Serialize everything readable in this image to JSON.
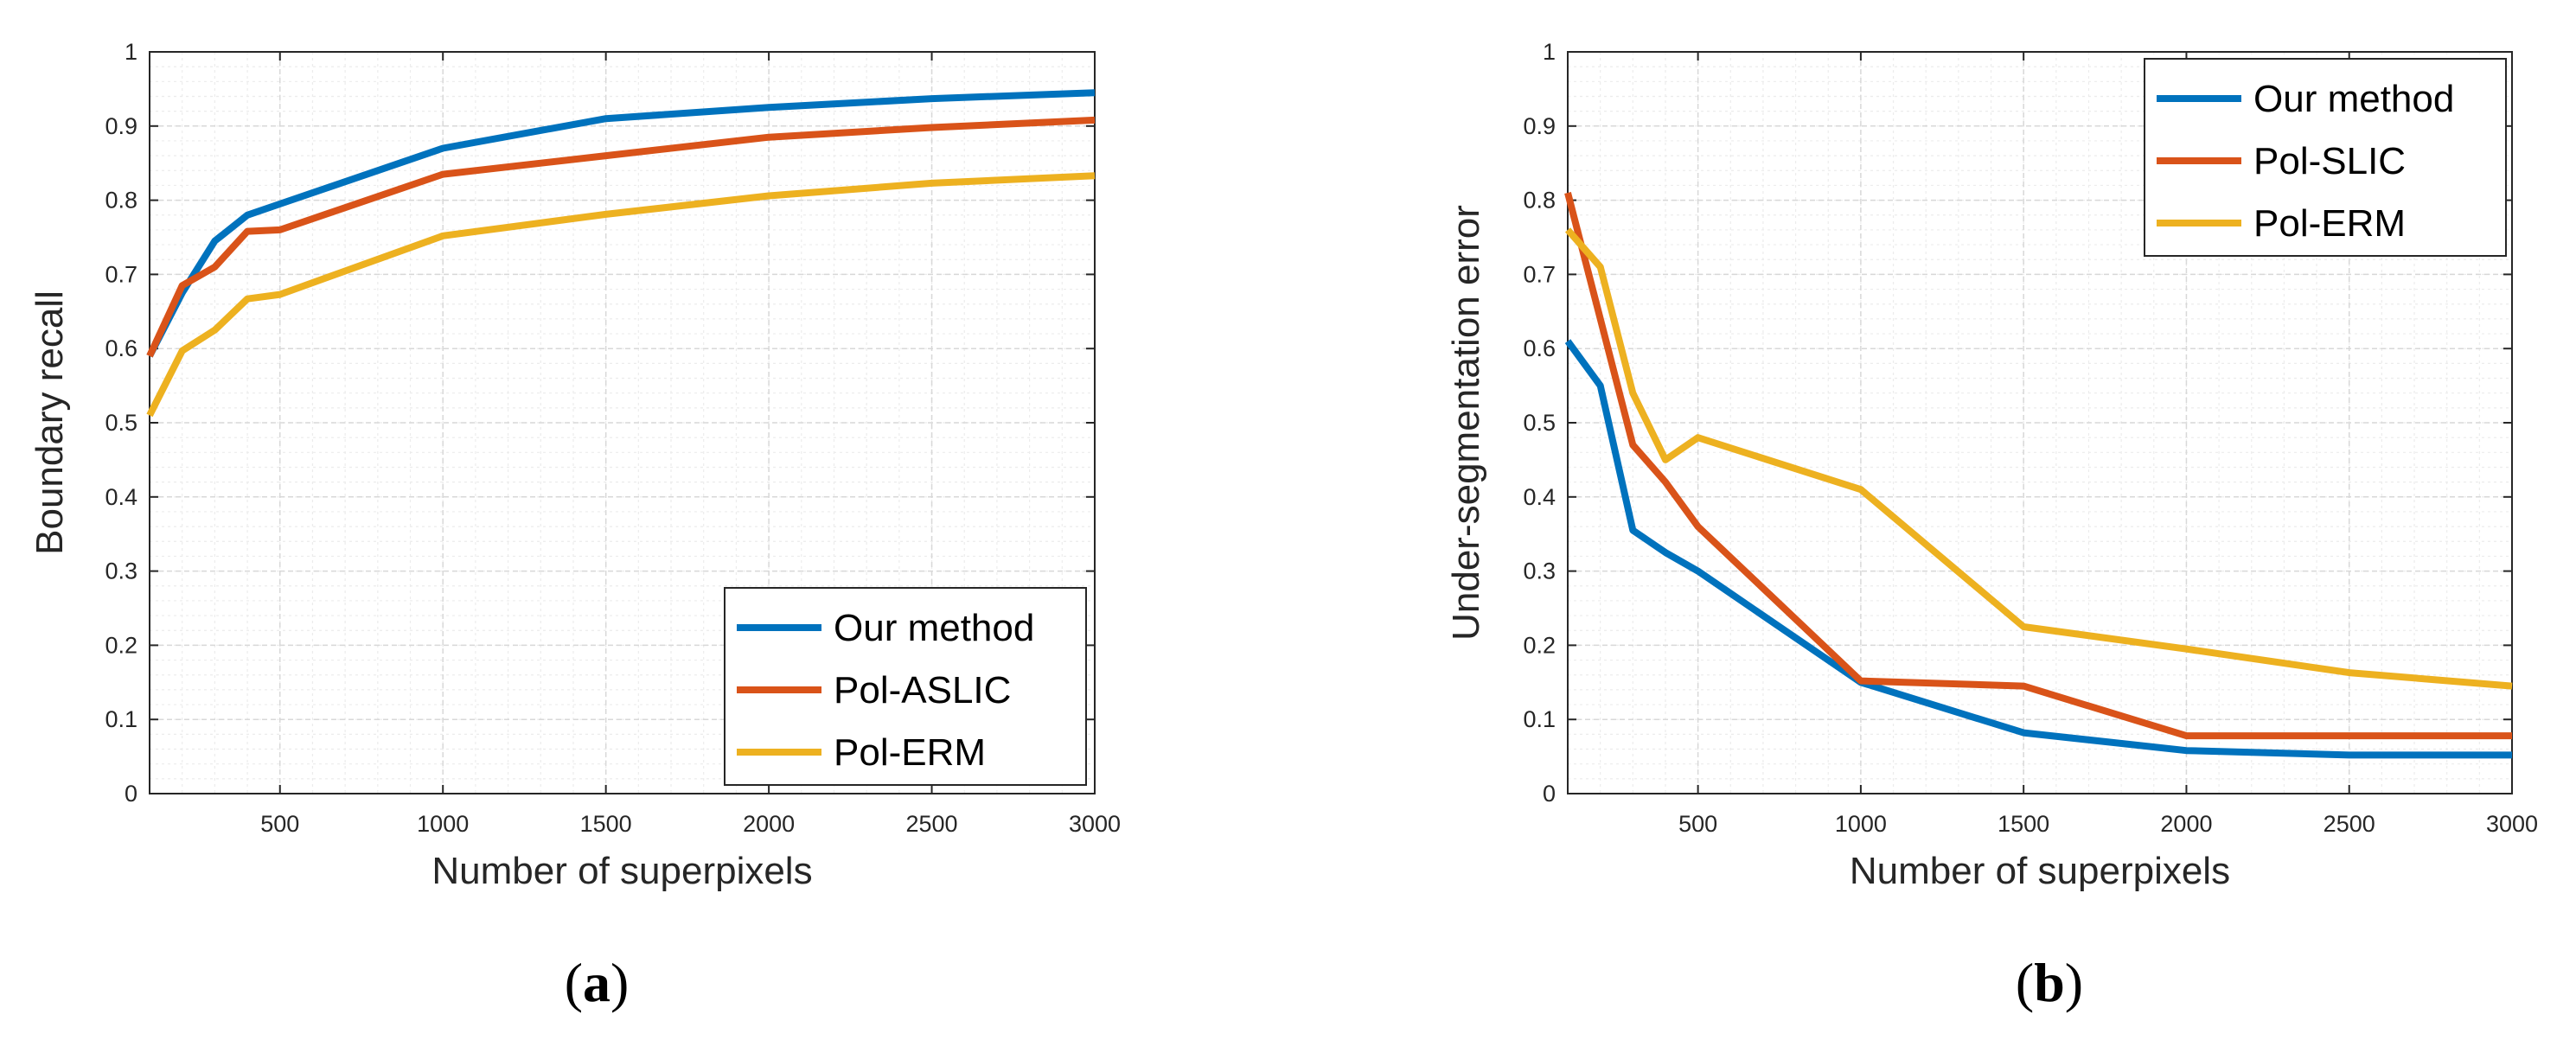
{
  "chart_data": [
    {
      "type": "line",
      "panel": "a",
      "caption_letter": "a",
      "xlabel": "Number of superpixels",
      "ylabel": "Boundary recall",
      "xlim": [
        100,
        3000
      ],
      "ylim": [
        0,
        1
      ],
      "xticks": [
        500,
        1000,
        1500,
        2000,
        2500,
        3000
      ],
      "yticks": [
        0,
        0.1,
        0.2,
        0.3,
        0.4,
        0.5,
        0.6,
        0.7,
        0.8,
        0.9,
        1
      ],
      "ytick_labels": [
        "0",
        "0.1",
        "0.2",
        "0.3",
        "0.4",
        "0.5",
        "0.6",
        "0.7",
        "0.8",
        "0.9",
        "1"
      ],
      "grid": true,
      "minor_grid": true,
      "legend_position": "bottom-right",
      "x": [
        100,
        200,
        300,
        400,
        500,
        1000,
        1500,
        2000,
        2500,
        3000
      ],
      "series": [
        {
          "name": "Our method",
          "color": "#0072BD",
          "values": [
            0.59,
            0.675,
            0.745,
            0.78,
            0.795,
            0.87,
            0.91,
            0.925,
            0.937,
            0.945
          ]
        },
        {
          "name": "Pol-ASLIC",
          "color": "#D95319",
          "values": [
            0.59,
            0.685,
            0.71,
            0.758,
            0.76,
            0.835,
            0.86,
            0.885,
            0.898,
            0.908
          ]
        },
        {
          "name": "Pol-ERM",
          "color": "#EDB120",
          "values": [
            0.51,
            0.597,
            0.625,
            0.667,
            0.673,
            0.752,
            0.781,
            0.806,
            0.823,
            0.833
          ]
        }
      ]
    },
    {
      "type": "line",
      "panel": "b",
      "caption_letter": "b",
      "xlabel": "Number of superpixels",
      "ylabel": "Under-segmentation error",
      "xlim": [
        100,
        3000
      ],
      "ylim": [
        0,
        1
      ],
      "xticks": [
        500,
        1000,
        1500,
        2000,
        2500,
        3000
      ],
      "yticks": [
        0,
        0.1,
        0.2,
        0.3,
        0.4,
        0.5,
        0.6,
        0.7,
        0.8,
        0.9,
        1
      ],
      "ytick_labels": [
        "0",
        "0.1",
        "0.2",
        "0.3",
        "0.4",
        "0.5",
        "0.6",
        "0.7",
        "0.8",
        "0.9",
        "1"
      ],
      "grid": true,
      "minor_grid": true,
      "legend_position": "top-right",
      "x": [
        100,
        200,
        300,
        400,
        500,
        1000,
        1500,
        2000,
        2500,
        3000
      ],
      "series": [
        {
          "name": "Our method",
          "color": "#0072BD",
          "values": [
            0.61,
            0.55,
            0.355,
            0.325,
            0.3,
            0.15,
            0.082,
            0.058,
            0.052,
            0.052
          ]
        },
        {
          "name": "Pol-SLIC",
          "color": "#D95319",
          "values": [
            0.81,
            0.64,
            0.47,
            0.42,
            0.36,
            0.152,
            0.145,
            0.078,
            0.078,
            0.078
          ]
        },
        {
          "name": "Pol-ERM",
          "color": "#EDB120",
          "values": [
            0.76,
            0.71,
            0.54,
            0.45,
            0.48,
            0.41,
            0.225,
            0.195,
            0.163,
            0.145
          ]
        }
      ]
    }
  ]
}
